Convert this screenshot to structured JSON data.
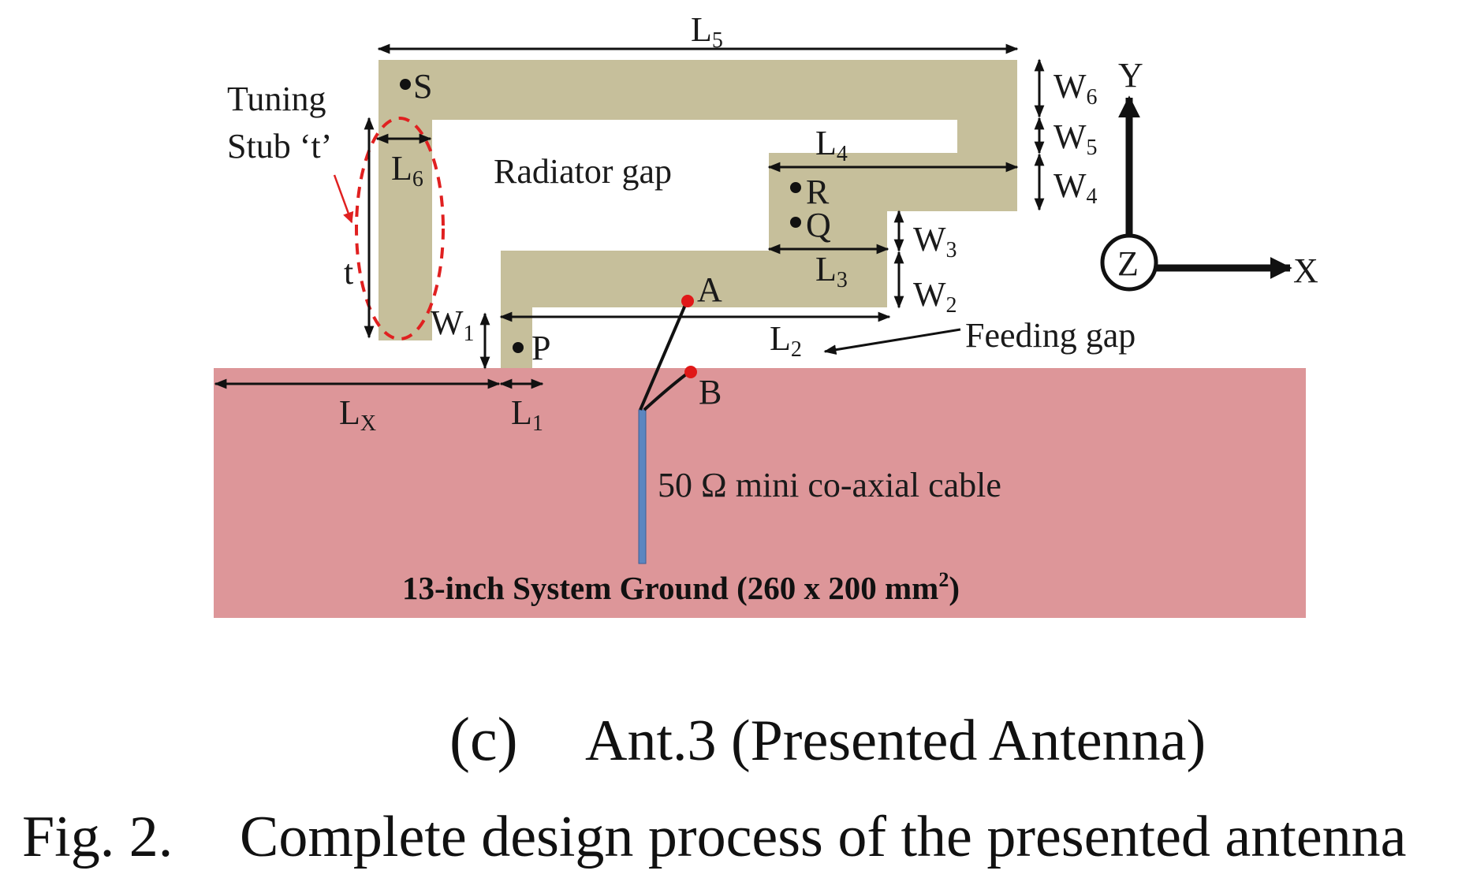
{
  "colors": {
    "radiator": "#c6bf9b",
    "ground": "#dd9699",
    "cable": "#5b86c0",
    "feed_point": "#e01818",
    "highlight": "#e02020",
    "ink": "#111111"
  },
  "labels": {
    "L5": "L",
    "L5_sub": "5",
    "L4": "L",
    "L4_sub": "4",
    "L3": "L",
    "L3_sub": "3",
    "L2": "L",
    "L2_sub": "2",
    "L1": "L",
    "L1_sub": "1",
    "L6": "L",
    "L6_sub": "6",
    "LX": "L",
    "LX_sub": "X",
    "W6": "W",
    "W6_sub": "6",
    "W5": "W",
    "W5_sub": "5",
    "W4": "W",
    "W4_sub": "4",
    "W3": "W",
    "W3_sub": "3",
    "W2": "W",
    "W2_sub": "2",
    "W1": "W",
    "W1_sub": "1",
    "t": "t",
    "point_S": "S",
    "point_R": "R",
    "point_Q": "Q",
    "point_P": "P",
    "point_A": "A",
    "point_B": "B",
    "tuning_line1": "Tuning",
    "tuning_line2": "Stub ‘t’",
    "radiator_gap": "Radiator gap",
    "feeding_gap": "Feeding gap",
    "cable": "50 Ω mini co-axial cable",
    "ground": "13-inch System Ground (260 x 200 mm",
    "ground_sup": "2",
    "ground_close": ")",
    "axis_y": "Y",
    "axis_x": "X",
    "axis_z": "Z"
  },
  "caption": {
    "sub": "(c)",
    "sub_title": "Ant.3 (Presented Antenna)",
    "fig_num": "Fig. 2.",
    "fig_title": "Complete design process of the presented antenna"
  }
}
